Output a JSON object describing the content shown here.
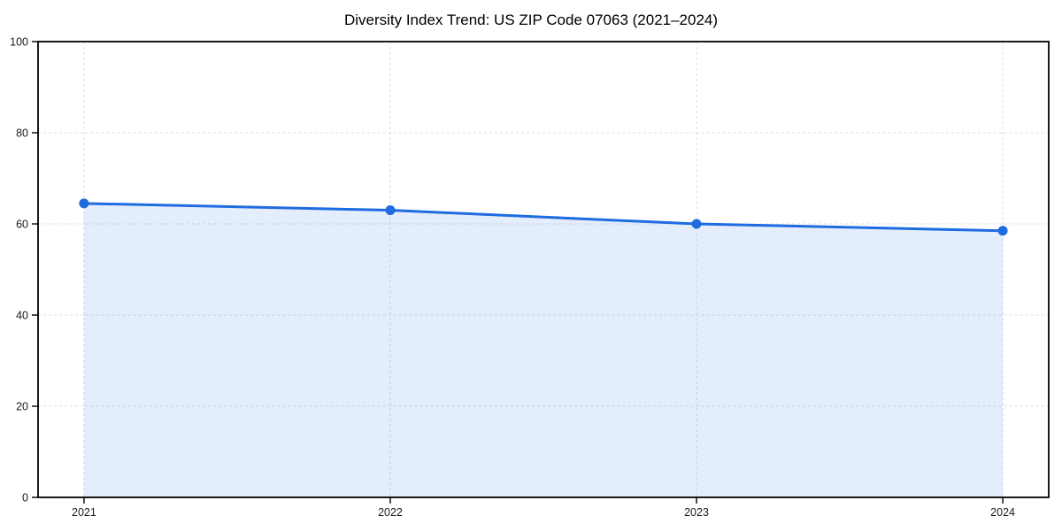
{
  "chart_data": {
    "type": "area",
    "title": "Diversity Index Trend: US ZIP Code 07063 (2021–2024)",
    "categories": [
      "2021",
      "2022",
      "2023",
      "2024"
    ],
    "series": [
      {
        "name": "Diversity Index",
        "values": [
          64.5,
          63,
          60,
          58.5
        ]
      }
    ],
    "xlabel": "",
    "ylabel": "",
    "ylim": [
      0,
      100
    ],
    "y_ticks": [
      0,
      20,
      40,
      60,
      80,
      100
    ],
    "grid": true,
    "grid_style": "dashed",
    "legend": false,
    "marker": "circle",
    "colors": {
      "line": "#1f6be0",
      "fill": "rgba(31,107,224,0.12)",
      "grid": "#dcdcdc",
      "spine": "#000000",
      "tick_label": "#1a1a1a",
      "title": "#000000",
      "background": "#ffffff"
    }
  }
}
